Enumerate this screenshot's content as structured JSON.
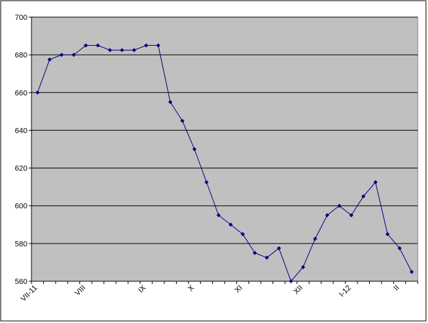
{
  "chart_data": {
    "type": "line",
    "categories": [
      "VII-11",
      null,
      null,
      null,
      "VIII",
      null,
      null,
      null,
      null,
      "IX",
      null,
      null,
      null,
      "X",
      null,
      null,
      null,
      "XI",
      null,
      null,
      null,
      null,
      "XII",
      null,
      null,
      null,
      "I-12",
      null,
      null,
      null,
      "II",
      null
    ],
    "values": [
      660,
      677.5,
      680,
      680,
      685,
      685,
      682.5,
      682.5,
      682.5,
      685,
      685,
      655,
      645,
      630,
      612.5,
      595,
      590,
      585,
      575,
      572.5,
      577.5,
      560,
      567.5,
      582.5,
      595,
      600,
      595,
      605,
      612.5,
      585,
      577.5,
      565
    ],
    "color": "#000080",
    "ylim": [
      560,
      700
    ],
    "yticks": [
      560,
      580,
      600,
      620,
      640,
      660,
      680,
      700
    ],
    "grid": true
  }
}
